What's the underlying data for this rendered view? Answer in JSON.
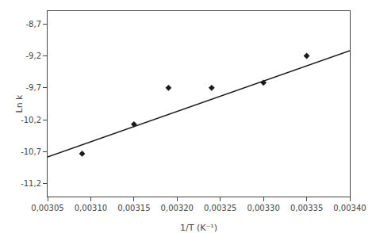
{
  "chart_data": {
    "type": "scatter",
    "xlabel": "1/T (K⁻¹)",
    "ylabel": "Ln k",
    "series": [
      {
        "type": "line",
        "x": [
          0.00305,
          0.0034
        ],
        "values": [
          -10.78,
          -9.12
        ],
        "color": "#1a1a1a",
        "line_style": "solid"
      },
      {
        "type": "scatter",
        "x": [
          0.00309,
          0.00315,
          0.00319,
          0.00324,
          0.0033,
          0.00335
        ],
        "values": [
          -10.73,
          -10.27,
          -9.7,
          -9.7,
          -9.62,
          -9.2
        ],
        "color": "#1a1a1a",
        "marker": "diamond"
      }
    ],
    "xlim": [
      0.00305,
      0.0034
    ],
    "ylim": [
      -11.4,
      -8.5
    ],
    "xticks": [
      {
        "value": 0.00305,
        "label": "0,00305"
      },
      {
        "value": 0.0031,
        "label": "0,00310"
      },
      {
        "value": 0.00315,
        "label": "0,00315"
      },
      {
        "value": 0.0032,
        "label": "0,00320"
      },
      {
        "value": 0.00325,
        "label": "0,00325"
      },
      {
        "value": 0.0033,
        "label": "0,00330"
      },
      {
        "value": 0.00335,
        "label": "0,00335"
      },
      {
        "value": 0.0034,
        "label": "0,00340"
      }
    ],
    "yticks": [
      {
        "value": -11.2,
        "label": "-11,2"
      },
      {
        "value": -10.7,
        "label": "-10,7"
      },
      {
        "value": -10.2,
        "label": "-10,2"
      },
      {
        "value": -9.7,
        "label": "-9,7"
      },
      {
        "value": -9.2,
        "label": "-9,2"
      },
      {
        "value": -8.7,
        "label": "-8,7"
      }
    ],
    "grid": false
  }
}
